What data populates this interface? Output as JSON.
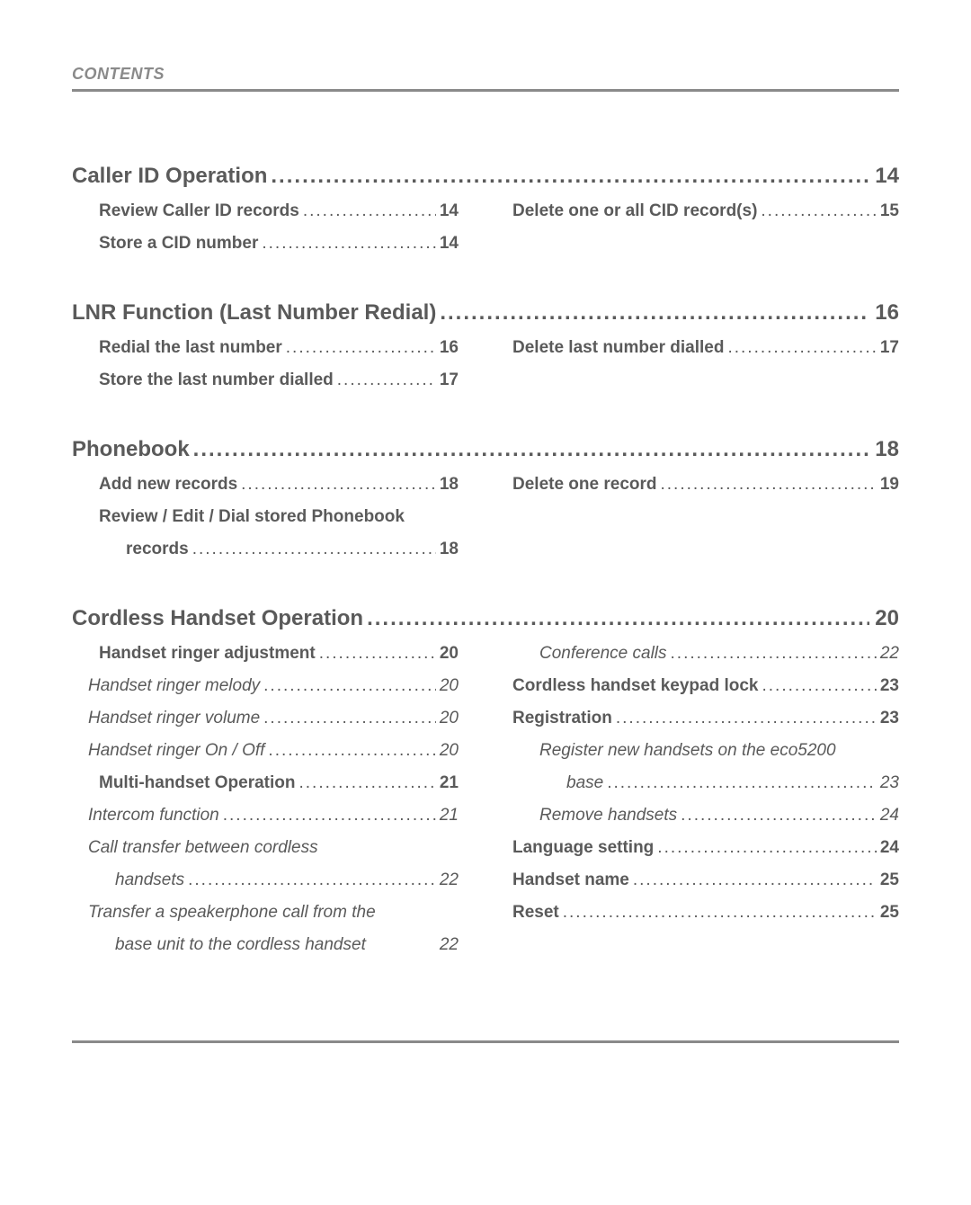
{
  "header": {
    "label": "CONTENTS"
  },
  "colors": {
    "text": "#5a5a5a",
    "header_text": "#8a8a8a",
    "rule": "#8a8a8a",
    "background": "#ffffff"
  },
  "typography": {
    "section_title_pt": 24,
    "entry_pt": 19,
    "header_pt": 18
  },
  "sections": [
    {
      "title": "Caller ID Operation",
      "page": "14",
      "left": [
        {
          "text": "Review Caller ID records",
          "page": "14",
          "style": "bold",
          "indent": 1
        },
        {
          "text": "Store a CID number",
          "page": "14",
          "style": "bold",
          "indent": 1
        }
      ],
      "right": [
        {
          "text": "Delete one or all CID record(s)",
          "page": "15",
          "style": "bold",
          "indent": 0
        }
      ]
    },
    {
      "title": "LNR Function (Last Number Redial)",
      "page": "16",
      "left": [
        {
          "text": "Redial the last number",
          "page": "16",
          "style": "bold",
          "indent": 1
        },
        {
          "text": "Store the last number dialled",
          "page": "17",
          "style": "bold",
          "indent": 1
        }
      ],
      "right": [
        {
          "text": "Delete last number dialled",
          "page": "17",
          "style": "bold",
          "indent": 0
        }
      ]
    },
    {
      "title": "Phonebook",
      "page": "18",
      "left": [
        {
          "text": "Add new records",
          "page": "18",
          "style": "bold",
          "indent": 1
        },
        {
          "text": "Review / Edit / Dial stored Phonebook",
          "cont": "records",
          "page": "18",
          "style": "bold",
          "indent": 1
        }
      ],
      "right": [
        {
          "text": "Delete one record",
          "page": "19",
          "style": "bold",
          "indent": 0
        }
      ]
    },
    {
      "title": "Cordless Handset Operation",
      "page": "20",
      "left": [
        {
          "text": "Handset ringer adjustment",
          "page": "20",
          "style": "bold",
          "indent": 1
        },
        {
          "text": "Handset ringer melody",
          "page": "20",
          "style": "italic",
          "indent": 2
        },
        {
          "text": "Handset ringer volume",
          "page": "20",
          "style": "italic",
          "indent": 2
        },
        {
          "text": "Handset ringer On / Off",
          "page": "20",
          "style": "italic",
          "indent": 2
        },
        {
          "text": "Multi-handset Operation",
          "page": "21",
          "style": "bold",
          "indent": 1
        },
        {
          "text": "Intercom function",
          "page": "21",
          "style": "italic",
          "indent": 2
        },
        {
          "text": "Call transfer between cordless",
          "cont": "handsets",
          "page": "22",
          "style": "italic",
          "indent": 2
        },
        {
          "text": "Transfer a speakerphone call from the",
          "cont": "base unit to the cordless handset",
          "page": "22",
          "style": "italic",
          "indent": 2,
          "no_leader": true
        }
      ],
      "right": [
        {
          "text": "Conference calls",
          "page": "22",
          "style": "italic",
          "indent": 1
        },
        {
          "text": "Cordless handset keypad lock",
          "page": "23",
          "style": "bold",
          "indent": 0
        },
        {
          "text": "Registration",
          "page": "23",
          "style": "bold",
          "indent": 0
        },
        {
          "text": "Register new handsets on the eco5200",
          "cont": "base",
          "page": "23",
          "style": "italic",
          "indent": 1
        },
        {
          "text": "Remove handsets",
          "page": "24",
          "style": "italic",
          "indent": 1
        },
        {
          "text": "Language setting",
          "page": "24",
          "style": "bold",
          "indent": 0
        },
        {
          "text": "Handset name",
          "page": "25",
          "style": "bold",
          "indent": 0
        },
        {
          "text": "Reset",
          "page": "25",
          "style": "bold",
          "indent": 0
        }
      ]
    }
  ]
}
